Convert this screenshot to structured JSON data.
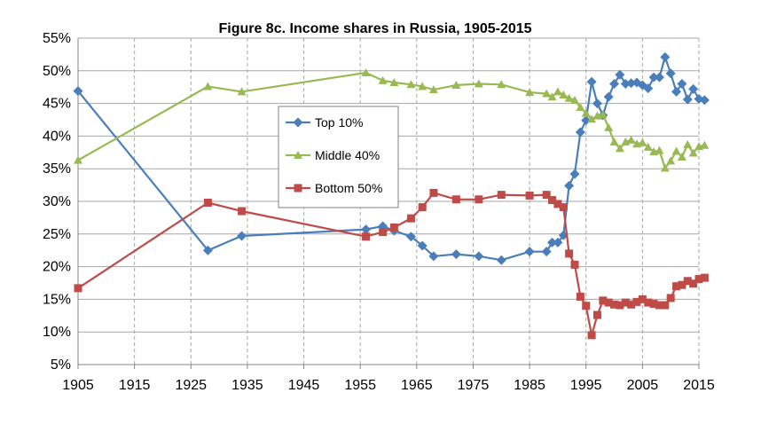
{
  "chart_data": {
    "type": "line",
    "title": "Figure 8c. Income shares in Russia, 1905-2015",
    "xlabel": "",
    "ylabel": "",
    "xlim": [
      1905,
      2015
    ],
    "ylim": [
      0.05,
      0.55
    ],
    "x_ticks": [
      1905,
      1915,
      1925,
      1935,
      1945,
      1955,
      1965,
      1975,
      1985,
      1995,
      2005,
      2015
    ],
    "x_tick_labels": [
      "1905",
      "1915",
      "1925",
      "1935",
      "1945",
      "1955",
      "1965",
      "1975",
      "1985",
      "1995",
      "2005",
      "2015"
    ],
    "y_ticks": [
      0.05,
      0.1,
      0.15,
      0.2,
      0.25,
      0.3,
      0.35,
      0.4,
      0.45,
      0.5,
      0.55
    ],
    "y_tick_labels": [
      "5%",
      "10%",
      "15%",
      "20%",
      "25%",
      "30%",
      "35%",
      "40%",
      "45%",
      "50%",
      "55%"
    ],
    "grid": {
      "horizontal": "solid",
      "vertical": "dashed"
    },
    "legend_position": "center-left",
    "series": [
      {
        "name": "Top 10%",
        "color": "#4a7ebb",
        "marker": "diamond",
        "points": [
          [
            1905,
            0.469
          ],
          [
            1928,
            0.225
          ],
          [
            1934,
            0.247
          ],
          [
            1956,
            0.257
          ],
          [
            1959,
            0.262
          ],
          [
            1961,
            0.255
          ],
          [
            1964,
            0.246
          ],
          [
            1966,
            0.232
          ],
          [
            1968,
            0.216
          ],
          [
            1972,
            0.219
          ],
          [
            1976,
            0.216
          ],
          [
            1980,
            0.21
          ],
          [
            1985,
            0.223
          ],
          [
            1988,
            0.223
          ],
          [
            1989,
            0.237
          ],
          [
            1990,
            0.237
          ],
          [
            1991,
            0.248
          ],
          [
            1992,
            0.324
          ],
          [
            1993,
            0.342
          ],
          [
            1994,
            0.406
          ],
          [
            1995,
            0.424
          ],
          [
            1996,
            0.483
          ],
          [
            1997,
            0.45
          ],
          [
            1998,
            0.432
          ],
          [
            1999,
            0.46
          ],
          [
            2000,
            0.48
          ],
          [
            2001,
            0.494
          ],
          [
            2002,
            0.48
          ],
          [
            2003,
            0.481
          ],
          [
            2004,
            0.482
          ],
          [
            2005,
            0.478
          ],
          [
            2006,
            0.473
          ],
          [
            2007,
            0.49
          ],
          [
            2008,
            0.49
          ],
          [
            2009,
            0.521
          ],
          [
            2010,
            0.496
          ],
          [
            2011,
            0.468
          ],
          [
            2012,
            0.48
          ],
          [
            2013,
            0.456
          ],
          [
            2014,
            0.472
          ],
          [
            2015,
            0.457
          ],
          [
            2016,
            0.455
          ]
        ]
      },
      {
        "name": "Middle 40%",
        "color": "#98b954",
        "marker": "triangle",
        "points": [
          [
            1905,
            0.363
          ],
          [
            1928,
            0.476
          ],
          [
            1934,
            0.468
          ],
          [
            1956,
            0.497
          ],
          [
            1959,
            0.485
          ],
          [
            1961,
            0.482
          ],
          [
            1964,
            0.479
          ],
          [
            1966,
            0.476
          ],
          [
            1968,
            0.471
          ],
          [
            1972,
            0.478
          ],
          [
            1976,
            0.48
          ],
          [
            1980,
            0.479
          ],
          [
            1985,
            0.467
          ],
          [
            1988,
            0.465
          ],
          [
            1989,
            0.46
          ],
          [
            1990,
            0.468
          ],
          [
            1991,
            0.463
          ],
          [
            1992,
            0.458
          ],
          [
            1993,
            0.455
          ],
          [
            1994,
            0.444
          ],
          [
            1995,
            0.435
          ],
          [
            1996,
            0.426
          ],
          [
            1997,
            0.431
          ],
          [
            1998,
            0.433
          ],
          [
            1999,
            0.413
          ],
          [
            2000,
            0.391
          ],
          [
            2001,
            0.381
          ],
          [
            2002,
            0.391
          ],
          [
            2003,
            0.394
          ],
          [
            2004,
            0.388
          ],
          [
            2005,
            0.39
          ],
          [
            2006,
            0.383
          ],
          [
            2007,
            0.376
          ],
          [
            2008,
            0.378
          ],
          [
            2009,
            0.351
          ],
          [
            2010,
            0.362
          ],
          [
            2011,
            0.377
          ],
          [
            2012,
            0.368
          ],
          [
            2013,
            0.387
          ],
          [
            2014,
            0.374
          ],
          [
            2015,
            0.384
          ],
          [
            2016,
            0.386
          ]
        ]
      },
      {
        "name": "Bottom 50%",
        "color": "#be4b48",
        "marker": "square",
        "points": [
          [
            1905,
            0.167
          ],
          [
            1928,
            0.298
          ],
          [
            1934,
            0.285
          ],
          [
            1956,
            0.246
          ],
          [
            1959,
            0.253
          ],
          [
            1961,
            0.26
          ],
          [
            1964,
            0.274
          ],
          [
            1966,
            0.291
          ],
          [
            1968,
            0.313
          ],
          [
            1972,
            0.303
          ],
          [
            1976,
            0.303
          ],
          [
            1980,
            0.31
          ],
          [
            1985,
            0.309
          ],
          [
            1988,
            0.31
          ],
          [
            1989,
            0.302
          ],
          [
            1990,
            0.296
          ],
          [
            1991,
            0.291
          ],
          [
            1992,
            0.22
          ],
          [
            1993,
            0.203
          ],
          [
            1994,
            0.154
          ],
          [
            1995,
            0.14
          ],
          [
            1996,
            0.095
          ],
          [
            1997,
            0.126
          ],
          [
            1998,
            0.148
          ],
          [
            1999,
            0.145
          ],
          [
            2000,
            0.142
          ],
          [
            2001,
            0.141
          ],
          [
            2002,
            0.145
          ],
          [
            2003,
            0.142
          ],
          [
            2004,
            0.146
          ],
          [
            2005,
            0.15
          ],
          [
            2006,
            0.145
          ],
          [
            2007,
            0.143
          ],
          [
            2008,
            0.141
          ],
          [
            2009,
            0.141
          ],
          [
            2010,
            0.152
          ],
          [
            2011,
            0.17
          ],
          [
            2012,
            0.172
          ],
          [
            2013,
            0.178
          ],
          [
            2014,
            0.174
          ],
          [
            2015,
            0.181
          ],
          [
            2016,
            0.183
          ]
        ]
      }
    ]
  }
}
